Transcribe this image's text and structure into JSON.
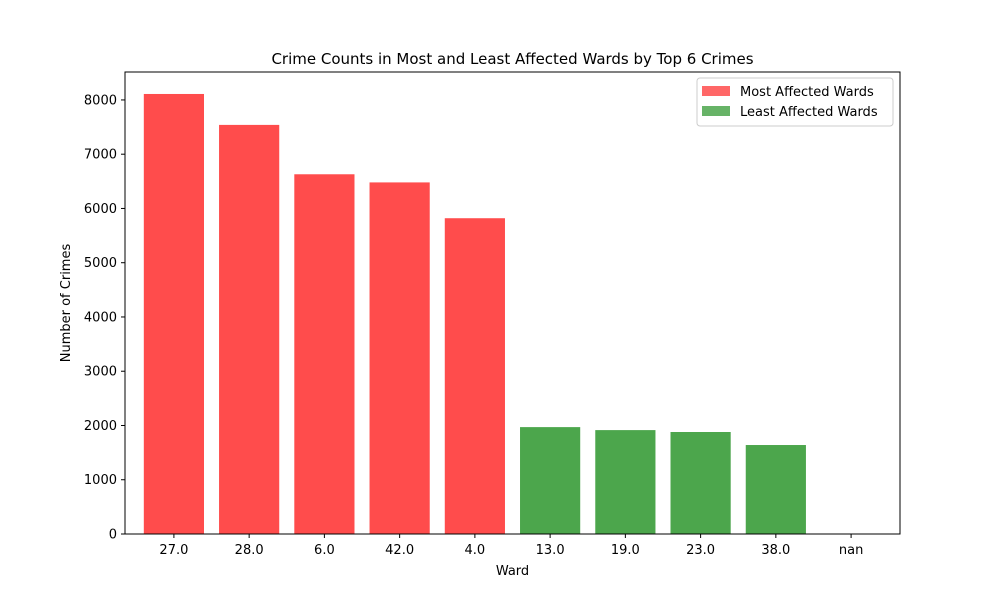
{
  "chart_data": {
    "type": "bar",
    "title": "Crime Counts in Most and Least Affected Wards by Top 6 Crimes",
    "xlabel": "Ward",
    "ylabel": "Number of Crimes",
    "categories": [
      "27.0",
      "28.0",
      "6.0",
      "42.0",
      "4.0",
      "13.0",
      "19.0",
      "23.0",
      "38.0",
      "nan"
    ],
    "series": [
      {
        "name": "Most Affected Wards",
        "color": "#ff4c4c",
        "points": [
          {
            "x": "27.0",
            "y": 8110
          },
          {
            "x": "28.0",
            "y": 7540
          },
          {
            "x": "6.0",
            "y": 6630
          },
          {
            "x": "42.0",
            "y": 6480
          },
          {
            "x": "4.0",
            "y": 5820
          }
        ]
      },
      {
        "name": "Least Affected Wards",
        "color": "#4ca64c",
        "points": [
          {
            "x": "13.0",
            "y": 1970
          },
          {
            "x": "19.0",
            "y": 1915
          },
          {
            "x": "23.0",
            "y": 1880
          },
          {
            "x": "38.0",
            "y": 1640
          },
          {
            "x": "nan",
            "y": 0
          }
        ]
      }
    ],
    "yticks": [
      "0",
      "1000",
      "2000",
      "3000",
      "4000",
      "5000",
      "6000",
      "7000",
      "8000"
    ],
    "ylim": [
      0,
      8515
    ],
    "legend": "top-right",
    "grid": false
  }
}
